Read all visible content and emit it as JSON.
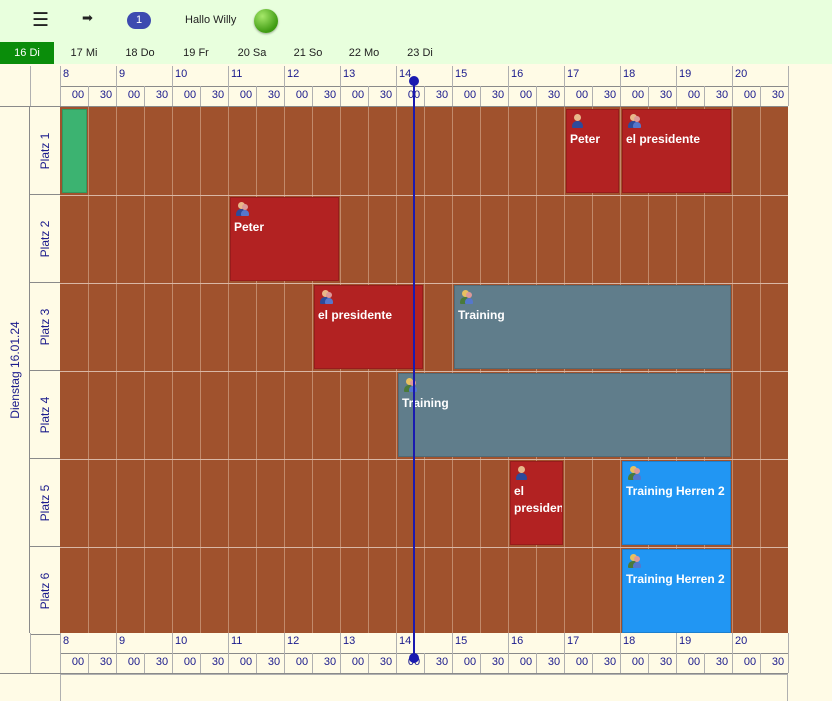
{
  "topbar": {
    "menu_icon": "hamburger-menu-icon",
    "logout_icon": "logout-arrow-icon",
    "badge_count": "1",
    "greeting": "Hallo Willy",
    "status_icon": "green-check-icon"
  },
  "days": [
    "16 Di",
    "17 Mi",
    "18 Do",
    "19 Fr",
    "20 Sa",
    "21 So",
    "22 Mo",
    "23 Di"
  ],
  "active_day": "16 Di",
  "timeline": {
    "hours": [
      "8",
      "9",
      "10",
      "11",
      "12",
      "13",
      "14",
      "15",
      "16",
      "17",
      "18",
      "19",
      "20"
    ],
    "minutes": [
      "00",
      "30"
    ]
  },
  "day_label": "Dienstag 16.01.24",
  "courts": [
    "Platz 1",
    "Platz 2",
    "Platz 3",
    "Platz 4",
    "Platz 5",
    "Platz 6"
  ],
  "colors": {
    "free_slot": "#a0522d",
    "private_booking": "#b22222",
    "training": "#607d8b",
    "team_training": "#2196f3",
    "own_slot": "#3cb371",
    "now_line": "#1a1ab0"
  },
  "now_time": "14:15",
  "bookings": [
    {
      "court": "Platz 1",
      "start": "8:00",
      "end": "8:30",
      "title": "",
      "kind": "own_slot",
      "icon": ""
    },
    {
      "court": "Platz 1",
      "start": "17:00",
      "end": "18:00",
      "title": "Peter",
      "kind": "private_booking",
      "icon": "single-player-icon"
    },
    {
      "court": "Platz 1",
      "start": "18:00",
      "end": "20:00",
      "title": "el presidente",
      "kind": "private_booking",
      "icon": "double-player-icon"
    },
    {
      "court": "Platz 2",
      "start": "11:00",
      "end": "13:00",
      "title": "Peter",
      "kind": "private_booking",
      "icon": "double-player-icon"
    },
    {
      "court": "Platz 3",
      "start": "12:30",
      "end": "14:30",
      "title": "el presidente",
      "kind": "private_booking",
      "icon": "double-player-icon"
    },
    {
      "court": "Platz 3",
      "start": "15:00",
      "end": "20:00",
      "title": "Training",
      "kind": "training",
      "icon": "training-group-icon"
    },
    {
      "court": "Platz 4",
      "start": "14:00",
      "end": "20:00",
      "title": "Training",
      "kind": "training",
      "icon": "training-group-icon"
    },
    {
      "court": "Platz 5",
      "start": "16:00",
      "end": "17:00",
      "title": "el presiden",
      "kind": "private_booking",
      "icon": "single-player-icon"
    },
    {
      "court": "Platz 5",
      "start": "18:00",
      "end": "20:00",
      "title": "Training Herren 2",
      "kind": "team_training",
      "icon": "training-group-icon"
    },
    {
      "court": "Platz 6",
      "start": "18:00",
      "end": "20:00",
      "title": "Training Herren 2",
      "kind": "team_training",
      "icon": "training-group-icon"
    }
  ]
}
